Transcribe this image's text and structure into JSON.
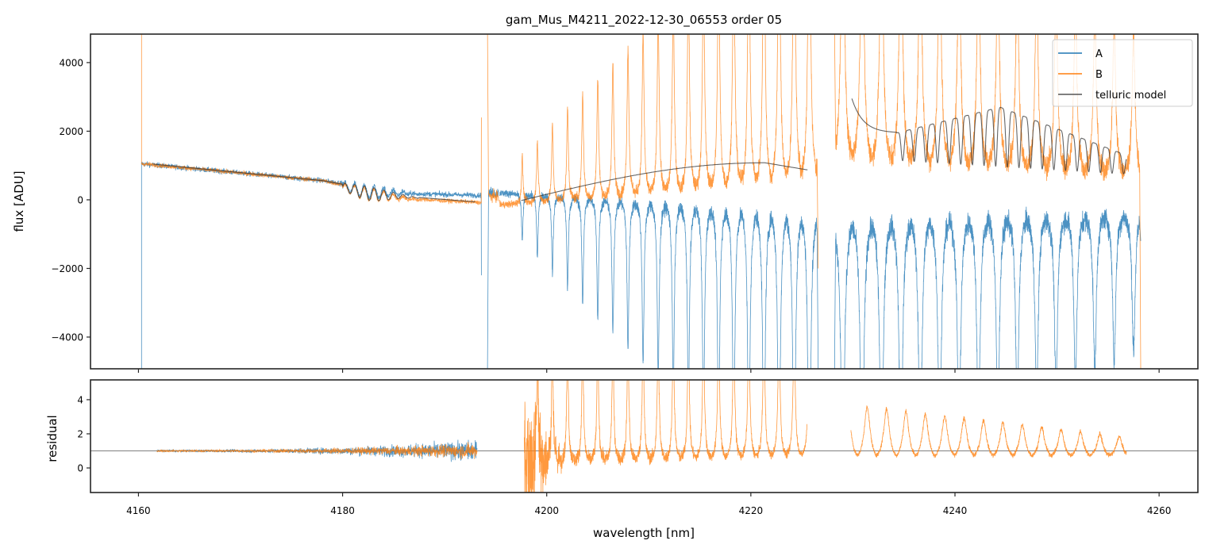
{
  "chart_data": [
    {
      "panel": "top",
      "type": "line",
      "title": "gam_Mus_M4211_2022-12-30_06553  order 05",
      "xlabel": "",
      "ylabel": "flux [ADU]",
      "xlim": [
        4155.3,
        4263.8
      ],
      "ylim": [
        -4925,
        4830
      ],
      "xticks": [
        4160,
        4180,
        4200,
        4220,
        4240,
        4260
      ],
      "yticks": [
        -4000,
        -2000,
        0,
        2000,
        4000
      ],
      "ytick_labels": [
        "−4000",
        "−2000",
        "0",
        "2000",
        "4000"
      ],
      "grid": false,
      "legend": {
        "placement": "top-right",
        "entries": [
          {
            "label": "A",
            "color": "#1f77b4"
          },
          {
            "label": "B",
            "color": "#ff7f0e"
          },
          {
            "label": "telluric model",
            "color": "#555555"
          }
        ]
      },
      "series": [
        {
          "name": "A",
          "color": "#1f77b4",
          "segments": [
            {
              "x_range": [
                4160.3,
                4193.6
              ],
              "baseline_start": 1050,
              "baseline_end": 130,
              "feature": "slow decline with weak absorption ripple 4180-4187",
              "noise": 60
            },
            {
              "x_range": [
                4195.3,
                4226.5
              ],
              "continuum": [
                250,
                -300
              ],
              "feature": "periodic absorption dips, spacing ~1.48 nm, depth growing to below -5000",
              "noise": 180
            },
            {
              "x_range": [
                4228.2,
                4258.1
              ],
              "continuum": [
                -500,
                -300
              ],
              "feature": "periodic absorption dips, spacing ~1.9 nm, depths -5000 to -2500",
              "noise": 220
            }
          ]
        },
        {
          "name": "B",
          "color": "#ff7f0e",
          "segments": [
            {
              "x_range": [
                4160.3,
                4193.6
              ],
              "baseline_start": 1030,
              "baseline_end": -100,
              "feature": "slow decline with weak absorption ripple 4180-4187",
              "noise": 60
            },
            {
              "x_range": [
                4195.3,
                4226.5
              ],
              "continuum": [
                -150,
                500
              ],
              "feature": "periodic emission peaks, spacing ~1.48 nm, heights growing to above 4800",
              "noise": 180
            },
            {
              "x_range": [
                4228.2,
                4258.1
              ],
              "continuum": [
                900,
                600
              ],
              "feature": "periodic emission peaks, spacing ~1.9 nm, heights 2000 to 4800",
              "noise": 220
            }
          ]
        },
        {
          "name": "telluric model",
          "color": "#555555",
          "segments": [
            {
              "x": [
                4161.5,
                4170,
                4175,
                4180,
                4186,
                4193
              ],
              "y": [
                1040,
                820,
                700,
                480,
                50,
                -100
              ],
              "feature": "oscillations 4180-4187 amplitude ~200"
            },
            {
              "x": [
                4197.5,
                4202,
                4207,
                4212,
                4216,
                4220,
                4223,
                4225.5
              ],
              "y": [
                0,
                220,
                480,
                730,
                920,
                1080,
                1060,
                870
              ]
            },
            {
              "x": [
                4229.9,
                4231,
                4232,
                4233.2,
                4234.3
              ],
              "y": [
                2950,
                2450,
                2100,
                1980,
                1960
              ],
              "feature": "then oscillations to 4256.8, upper envelope 1950-2700-1300, lower envelope 1150-750"
            }
          ]
        }
      ]
    },
    {
      "panel": "bottom",
      "type": "line",
      "title": "",
      "xlabel": "wavelength [nm]",
      "ylabel": "residual",
      "xlim": [
        4155.3,
        4263.8
      ],
      "ylim": [
        -1.44,
        5.16
      ],
      "xticks": [
        4160,
        4180,
        4200,
        4220,
        4240,
        4260
      ],
      "yticks": [
        0,
        2,
        4
      ],
      "reference_line": 1,
      "grid": false,
      "series": [
        {
          "name": "A",
          "color": "#1f77b4",
          "segments": [
            {
              "x_range": [
                4161.8,
                4193.2
              ],
              "center": 1.0,
              "noise_start": 0.05,
              "noise_end": 0.45
            }
          ]
        },
        {
          "name": "B",
          "color": "#ff7f0e",
          "segments": [
            {
              "x_range": [
                4161.8,
                4193.2
              ],
              "center": 1.0,
              "noise_start": 0.04,
              "noise_end": 0.35
            },
            {
              "x_range": [
                4197.8,
                4225.5
              ],
              "center": 0.5,
              "feature": "periodic spikes above 5, spacing ~1.48 nm, strong low noise near 4198-4201"
            },
            {
              "x_range": [
                4229.8,
                4256.8
              ],
              "center": 0.6,
              "feature": "periodic peaks, spacing ~1.9 nm, heights 3.9 down to 1.7"
            }
          ]
        }
      ]
    }
  ]
}
